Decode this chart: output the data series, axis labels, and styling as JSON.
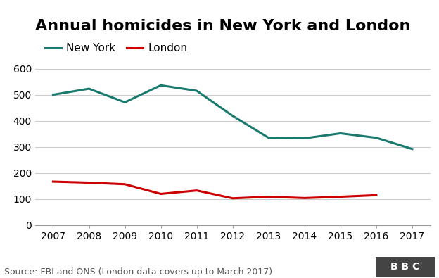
{
  "title": "Annual homicides in New York and London",
  "years": [
    2007,
    2008,
    2009,
    2010,
    2011,
    2012,
    2013,
    2014,
    2015,
    2016,
    2017
  ],
  "new_york": [
    500,
    523,
    471,
    536,
    515,
    419,
    335,
    333,
    352,
    335,
    292
  ],
  "london": [
    167,
    163,
    157,
    120,
    133,
    103,
    109,
    104,
    109,
    115
  ],
  "london_years": [
    2007,
    2008,
    2009,
    2010,
    2011,
    2012,
    2013,
    2014,
    2015,
    2016
  ],
  "ny_color": "#1a7a6e",
  "london_color": "#cc0000",
  "background_color": "#ffffff",
  "grid_color": "#cccccc",
  "ylim": [
    0,
    650
  ],
  "yticks": [
    0,
    100,
    200,
    300,
    400,
    500,
    600
  ],
  "source_text": "Source: FBI and ONS (London data covers up to March 2017)",
  "bbc_text": "B B C",
  "title_fontsize": 16,
  "legend_fontsize": 11,
  "axis_fontsize": 10,
  "source_fontsize": 9,
  "line_width": 2.2
}
